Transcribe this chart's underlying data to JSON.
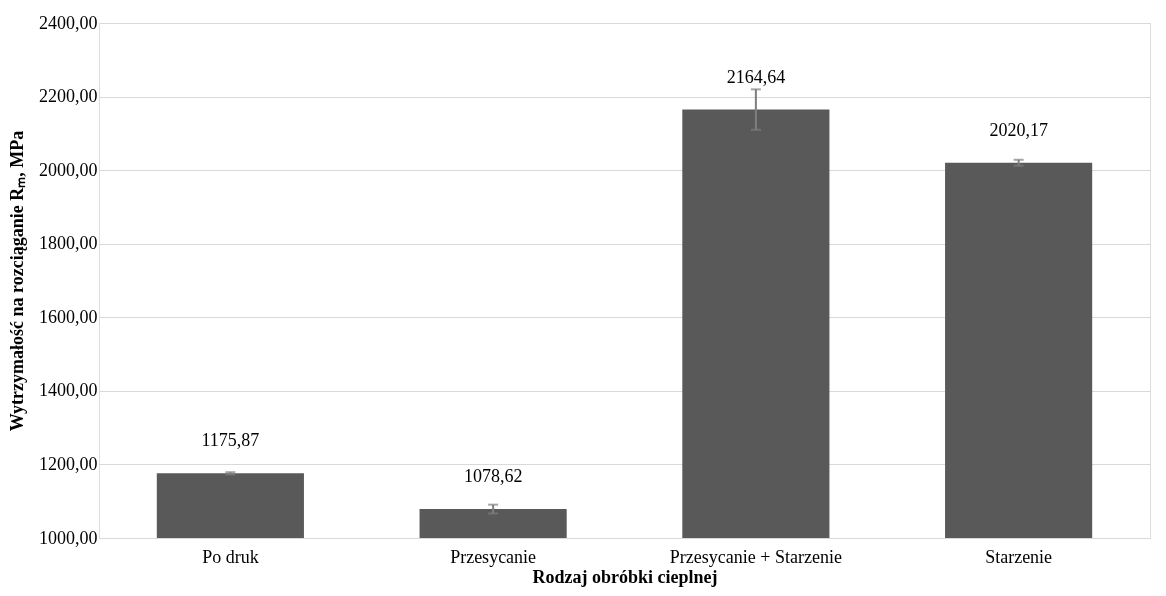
{
  "chart_data": {
    "type": "bar",
    "xlabel": "Rodzaj obróbki cieplnej",
    "ylabel": "Wytrzymałość na rozciąganie Rₘ, MPa",
    "categories": [
      "Po druk",
      "Przesycanie",
      "Przesycanie + Starzenie",
      "Starzenie"
    ],
    "values": [
      1175.87,
      1078.62,
      2164.64,
      2020.17
    ],
    "value_labels": [
      "1175,87",
      "1078,62",
      "2164,64",
      "2020,17"
    ],
    "errors": [
      3,
      12,
      55,
      8
    ],
    "color": "#595959",
    "ylim": [
      1000,
      2400
    ],
    "yticks": [
      {
        "value": 1000,
        "label": "1000,00"
      },
      {
        "value": 1200,
        "label": "1200,00"
      },
      {
        "value": 1400,
        "label": "1400,00"
      },
      {
        "value": 1600,
        "label": "1600,00"
      },
      {
        "value": 1800,
        "label": "1800,00"
      },
      {
        "value": 2000,
        "label": "2000,00"
      },
      {
        "value": 2200,
        "label": "2200,00"
      },
      {
        "value": 2400,
        "label": "2400,00"
      }
    ],
    "grid": "y"
  }
}
